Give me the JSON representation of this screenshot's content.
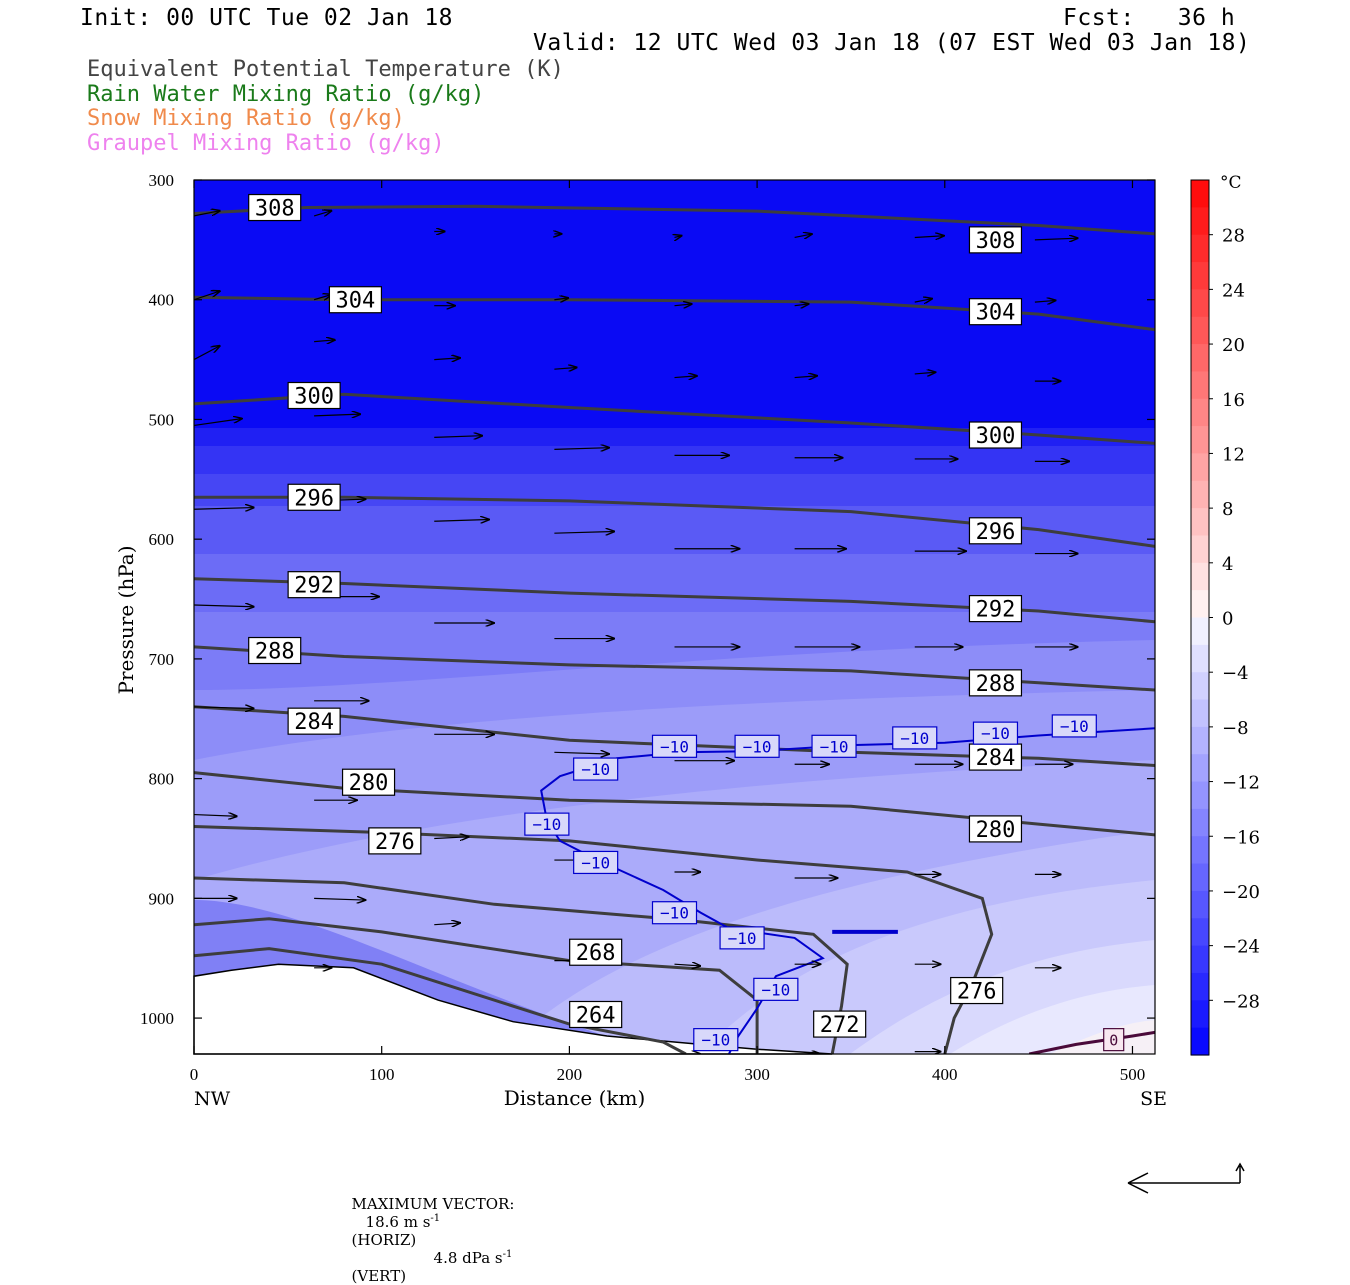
{
  "header": {
    "init": "Init: 00 UTC Tue 02 Jan 18",
    "fcst": "Fcst:   36 h",
    "valid": "Valid: 12 UTC Wed 03 Jan 18 (07 EST Wed 03 Jan 18)"
  },
  "legend": [
    {
      "label": "Equivalent Potential Temperature (K)",
      "color": "#444444"
    },
    {
      "label": "Rain Water Mixing Ratio (g/kg)",
      "color": "#1a7a1a"
    },
    {
      "label": "Snow Mixing Ratio (g/kg)",
      "color": "#f08a4b"
    },
    {
      "label": "Graupel Mixing Ratio (g/kg)",
      "color": "#ee82ee"
    }
  ],
  "footer": {
    "max_label": "MAXIMUM VECTOR:",
    "horiz": "18.6 m s",
    "horiz_sup": "-1",
    "horiz_tag": "(HORIZ)",
    "vert": "4.8 dPa s",
    "vert_sup": "-1",
    "vert_tag": "(VERT)"
  },
  "chart_data": {
    "type": "cross-section",
    "xlabel": "Distance (km)",
    "ylabel": "Pressure (hPa)",
    "xlim": [
      0,
      512
    ],
    "ylim": [
      1030,
      300
    ],
    "x_ticks": [
      0,
      100,
      200,
      300,
      400,
      500
    ],
    "y_ticks": [
      300,
      400,
      500,
      600,
      700,
      800,
      900,
      1000
    ],
    "x_end_labels": {
      "left": "NW",
      "right": "SE"
    },
    "colorbar": {
      "unit": "°C",
      "range": [
        -32,
        32
      ],
      "tick_values": [
        28,
        24,
        20,
        16,
        12,
        8,
        4,
        0,
        -4,
        -8,
        -12,
        -16,
        -20,
        -24,
        -28
      ]
    },
    "terrain": [
      [
        0,
        965
      ],
      [
        20,
        960
      ],
      [
        45,
        955
      ],
      [
        85,
        958
      ],
      [
        130,
        985
      ],
      [
        170,
        1003
      ],
      [
        220,
        1015
      ],
      [
        270,
        1022
      ],
      [
        300,
        1026
      ],
      [
        340,
        1030
      ]
    ],
    "theta_e_contours": [
      {
        "value": 308,
        "points": [
          [
            0,
            328
          ],
          [
            60,
            323
          ],
          [
            150,
            322
          ],
          [
            300,
            326
          ],
          [
            450,
            338
          ],
          [
            512,
            345
          ]
        ]
      },
      {
        "value": 304,
        "points": [
          [
            0,
            398
          ],
          [
            80,
            400
          ],
          [
            200,
            400
          ],
          [
            350,
            402
          ],
          [
            450,
            412
          ],
          [
            512,
            425
          ]
        ]
      },
      {
        "value": 300,
        "points": [
          [
            0,
            487
          ],
          [
            80,
            479
          ],
          [
            200,
            490
          ],
          [
            350,
            503
          ],
          [
            450,
            513
          ],
          [
            512,
            520
          ]
        ]
      },
      {
        "value": 296,
        "points": [
          [
            0,
            565
          ],
          [
            80,
            565
          ],
          [
            200,
            568
          ],
          [
            350,
            577
          ],
          [
            450,
            592
          ],
          [
            512,
            606
          ]
        ]
      },
      {
        "value": 292,
        "points": [
          [
            0,
            633
          ],
          [
            80,
            637
          ],
          [
            200,
            645
          ],
          [
            350,
            652
          ],
          [
            450,
            660
          ],
          [
            512,
            669
          ]
        ]
      },
      {
        "value": 288,
        "points": [
          [
            0,
            690
          ],
          [
            80,
            698
          ],
          [
            200,
            705
          ],
          [
            350,
            710
          ],
          [
            450,
            720
          ],
          [
            512,
            726
          ]
        ]
      },
      {
        "value": 284,
        "points": [
          [
            0,
            740
          ],
          [
            80,
            748
          ],
          [
            200,
            768
          ],
          [
            350,
            778
          ],
          [
            450,
            783
          ],
          [
            512,
            789
          ]
        ]
      },
      {
        "value": 280,
        "points": [
          [
            0,
            795
          ],
          [
            80,
            808
          ],
          [
            200,
            818
          ],
          [
            350,
            823
          ],
          [
            450,
            838
          ],
          [
            512,
            847
          ]
        ]
      },
      {
        "value": 276,
        "points": [
          [
            0,
            840
          ],
          [
            100,
            845
          ],
          [
            200,
            852
          ],
          [
            300,
            868
          ],
          [
            380,
            878
          ],
          [
            420,
            900
          ],
          [
            425,
            930
          ],
          [
            415,
            970
          ],
          [
            405,
            1000
          ],
          [
            400,
            1030
          ]
        ]
      },
      {
        "value": 272,
        "points": [
          [
            0,
            883
          ],
          [
            80,
            887
          ],
          [
            160,
            905
          ],
          [
            260,
            918
          ],
          [
            330,
            930
          ],
          [
            348,
            955
          ],
          [
            345,
            990
          ],
          [
            340,
            1030
          ]
        ]
      },
      {
        "value": 268,
        "points": [
          [
            0,
            922
          ],
          [
            40,
            917
          ],
          [
            100,
            928
          ],
          [
            200,
            952
          ],
          [
            280,
            960
          ],
          [
            300,
            985
          ],
          [
            300,
            1030
          ]
        ]
      },
      {
        "value": 264,
        "points": [
          [
            0,
            948
          ],
          [
            40,
            942
          ],
          [
            100,
            955
          ],
          [
            200,
            1005
          ],
          [
            250,
            1020
          ],
          [
            262,
            1030
          ]
        ]
      }
    ],
    "theta_e_labels": [
      {
        "value": "308",
        "x": 43,
        "p": 323
      },
      {
        "value": "308",
        "x": 427,
        "p": 350
      },
      {
        "value": "304",
        "x": 86,
        "p": 400
      },
      {
        "value": "304",
        "x": 427,
        "p": 410
      },
      {
        "value": "300",
        "x": 64,
        "p": 480
      },
      {
        "value": "300",
        "x": 427,
        "p": 513
      },
      {
        "value": "296",
        "x": 64,
        "p": 565
      },
      {
        "value": "296",
        "x": 427,
        "p": 593
      },
      {
        "value": "292",
        "x": 64,
        "p": 638
      },
      {
        "value": "292",
        "x": 427,
        "p": 658
      },
      {
        "value": "288",
        "x": 43,
        "p": 693
      },
      {
        "value": "288",
        "x": 427,
        "p": 720
      },
      {
        "value": "284",
        "x": 64,
        "p": 752
      },
      {
        "value": "284",
        "x": 427,
        "p": 782
      },
      {
        "value": "280",
        "x": 93,
        "p": 803
      },
      {
        "value": "280",
        "x": 427,
        "p": 842
      },
      {
        "value": "276",
        "x": 107,
        "p": 852
      },
      {
        "value": "276",
        "x": 417,
        "p": 977
      },
      {
        "value": "272",
        "x": 344,
        "p": 1005
      },
      {
        "value": "268",
        "x": 214,
        "p": 945
      },
      {
        "value": "264",
        "x": 214,
        "p": 997
      }
    ],
    "temp_contours": [
      {
        "value": -10,
        "points": [
          [
            225,
            783
          ],
          [
            215,
            788
          ],
          [
            195,
            798
          ],
          [
            185,
            810
          ],
          [
            188,
            835
          ],
          [
            195,
            852
          ],
          [
            215,
            868
          ],
          [
            250,
            893
          ],
          [
            270,
            912
          ],
          [
            285,
            925
          ],
          [
            320,
            933
          ],
          [
            335,
            950
          ],
          [
            310,
            965
          ],
          [
            300,
            992
          ],
          [
            290,
            1015
          ],
          [
            285,
            1030
          ]
        ]
      },
      {
        "value": -10,
        "points": [
          [
            225,
            783
          ],
          [
            260,
            778
          ],
          [
            300,
            777
          ],
          [
            350,
            772
          ],
          [
            400,
            770
          ],
          [
            450,
            764
          ],
          [
            512,
            758
          ]
        ]
      },
      {
        "value": -10,
        "points": [
          [
            340,
            928
          ],
          [
            375,
            928
          ]
        ]
      }
    ],
    "temp_labels": [
      {
        "value": "-10",
        "x": 214,
        "p": 792
      },
      {
        "value": "-10",
        "x": 256,
        "p": 773
      },
      {
        "value": "-10",
        "x": 300,
        "p": 773
      },
      {
        "value": "-10",
        "x": 341,
        "p": 773
      },
      {
        "value": "-10",
        "x": 384,
        "p": 766
      },
      {
        "value": "-10",
        "x": 427,
        "p": 762
      },
      {
        "value": "-10",
        "x": 469,
        "p": 756
      },
      {
        "value": "-10",
        "x": 188,
        "p": 838
      },
      {
        "value": "-10",
        "x": 214,
        "p": 870
      },
      {
        "value": "-10",
        "x": 256,
        "p": 912
      },
      {
        "value": "-10",
        "x": 292,
        "p": 933
      },
      {
        "value": "-10",
        "x": 310,
        "p": 976
      },
      {
        "value": "-10",
        "x": 278,
        "p": 1018
      }
    ],
    "zero_contour": {
      "value": 0,
      "points": [
        [
          445,
          1030
        ],
        [
          470,
          1022
        ],
        [
          500,
          1015
        ],
        [
          512,
          1012
        ]
      ]
    },
    "zero_label": {
      "value": "0",
      "x": 490,
      "p": 1018
    },
    "wind_vectors": [
      {
        "x": 0,
        "p": 330,
        "u": 15,
        "w": -3
      },
      {
        "x": 64,
        "p": 330,
        "u": 10,
        "w": -3
      },
      {
        "x": 128,
        "p": 343,
        "u": 6,
        "w": 0
      },
      {
        "x": 192,
        "p": 345,
        "u": 4,
        "w": 0
      },
      {
        "x": 256,
        "p": 348,
        "u": 4,
        "w": -1
      },
      {
        "x": 320,
        "p": 348,
        "u": 10,
        "w": -2
      },
      {
        "x": 384,
        "p": 348,
        "u": 17,
        "w": -1
      },
      {
        "x": 448,
        "p": 350,
        "u": 25,
        "w": -1
      },
      {
        "x": 0,
        "p": 400,
        "u": 15,
        "w": -5
      },
      {
        "x": 64,
        "p": 400,
        "u": 10,
        "w": -3
      },
      {
        "x": 128,
        "p": 405,
        "u": 12,
        "w": 0
      },
      {
        "x": 192,
        "p": 400,
        "u": 8,
        "w": -1
      },
      {
        "x": 256,
        "p": 405,
        "u": 10,
        "w": -1
      },
      {
        "x": 320,
        "p": 405,
        "u": 8,
        "w": -1
      },
      {
        "x": 384,
        "p": 402,
        "u": 10,
        "w": -2
      },
      {
        "x": 448,
        "p": 402,
        "u": 12,
        "w": -1
      },
      {
        "x": 0,
        "p": 450,
        "u": 15,
        "w": -8
      },
      {
        "x": 64,
        "p": 435,
        "u": 12,
        "w": -1
      },
      {
        "x": 128,
        "p": 450,
        "u": 15,
        "w": -1
      },
      {
        "x": 192,
        "p": 458,
        "u": 13,
        "w": -1
      },
      {
        "x": 256,
        "p": 465,
        "u": 13,
        "w": -1
      },
      {
        "x": 320,
        "p": 465,
        "u": 13,
        "w": -1
      },
      {
        "x": 384,
        "p": 462,
        "u": 12,
        "w": -1
      },
      {
        "x": 448,
        "p": 468,
        "u": 15,
        "w": 0
      },
      {
        "x": 0,
        "p": 505,
        "u": 28,
        "w": -4
      },
      {
        "x": 64,
        "p": 497,
        "u": 27,
        "w": -1
      },
      {
        "x": 128,
        "p": 515,
        "u": 28,
        "w": -1
      },
      {
        "x": 192,
        "p": 525,
        "u": 32,
        "w": -1
      },
      {
        "x": 256,
        "p": 530,
        "u": 32,
        "w": 0
      },
      {
        "x": 320,
        "p": 532,
        "u": 28,
        "w": 0
      },
      {
        "x": 384,
        "p": 533,
        "u": 25,
        "w": 0
      },
      {
        "x": 448,
        "p": 535,
        "u": 20,
        "w": 0
      },
      {
        "x": 0,
        "p": 575,
        "u": 35,
        "w": -1
      },
      {
        "x": 64,
        "p": 568,
        "u": 30,
        "w": -1
      },
      {
        "x": 128,
        "p": 585,
        "u": 32,
        "w": -1
      },
      {
        "x": 192,
        "p": 595,
        "u": 35,
        "w": -1
      },
      {
        "x": 256,
        "p": 608,
        "u": 38,
        "w": 0
      },
      {
        "x": 320,
        "p": 608,
        "u": 30,
        "w": 0
      },
      {
        "x": 384,
        "p": 610,
        "u": 30,
        "w": 0
      },
      {
        "x": 448,
        "p": 612,
        "u": 25,
        "w": 0
      },
      {
        "x": 0,
        "p": 655,
        "u": 35,
        "w": 1
      },
      {
        "x": 64,
        "p": 648,
        "u": 38,
        "w": 0
      },
      {
        "x": 128,
        "p": 670,
        "u": 35,
        "w": 0
      },
      {
        "x": 192,
        "p": 683,
        "u": 35,
        "w": 0
      },
      {
        "x": 256,
        "p": 690,
        "u": 38,
        "w": 0
      },
      {
        "x": 320,
        "p": 690,
        "u": 38,
        "w": 0
      },
      {
        "x": 384,
        "p": 690,
        "u": 28,
        "w": 0
      },
      {
        "x": 448,
        "p": 690,
        "u": 25,
        "w": 0
      },
      {
        "x": 0,
        "p": 740,
        "u": 35,
        "w": 1
      },
      {
        "x": 64,
        "p": 735,
        "u": 32,
        "w": 0
      },
      {
        "x": 128,
        "p": 763,
        "u": 35,
        "w": 0
      },
      {
        "x": 192,
        "p": 778,
        "u": 32,
        "w": 1
      },
      {
        "x": 256,
        "p": 785,
        "u": 35,
        "w": 0
      },
      {
        "x": 320,
        "p": 788,
        "u": 20,
        "w": 0
      },
      {
        "x": 384,
        "p": 788,
        "u": 28,
        "w": 0
      },
      {
        "x": 448,
        "p": 788,
        "u": 22,
        "w": 0
      },
      {
        "x": 0,
        "p": 830,
        "u": 25,
        "w": 1
      },
      {
        "x": 64,
        "p": 818,
        "u": 25,
        "w": 0
      },
      {
        "x": 128,
        "p": 850,
        "u": 20,
        "w": -1
      },
      {
        "x": 192,
        "p": 868,
        "u": 18,
        "w": 0
      },
      {
        "x": 256,
        "p": 878,
        "u": 15,
        "w": 0
      },
      {
        "x": 320,
        "p": 883,
        "u": 25,
        "w": 0
      },
      {
        "x": 384,
        "p": 880,
        "u": 15,
        "w": 0
      },
      {
        "x": 448,
        "p": 880,
        "u": 15,
        "w": 0
      },
      {
        "x": 0,
        "p": 900,
        "u": 25,
        "w": 0
      },
      {
        "x": 64,
        "p": 900,
        "u": 30,
        "w": 1
      },
      {
        "x": 128,
        "p": 922,
        "u": 15,
        "w": -1
      },
      {
        "x": 192,
        "p": 952,
        "u": 20,
        "w": 0
      },
      {
        "x": 256,
        "p": 955,
        "u": 15,
        "w": 1
      },
      {
        "x": 320,
        "p": 955,
        "u": 15,
        "w": 0
      },
      {
        "x": 384,
        "p": 955,
        "u": 15,
        "w": 0
      },
      {
        "x": 448,
        "p": 958,
        "u": 15,
        "w": 0
      },
      {
        "x": 64,
        "p": 958,
        "u": 10,
        "w": 0
      },
      {
        "x": 256,
        "p": 1030,
        "u": 15,
        "w": 0
      },
      {
        "x": 320,
        "p": 1030,
        "u": 15,
        "w": 0
      },
      {
        "x": 384,
        "p": 1028,
        "u": 15,
        "w": 0
      }
    ]
  }
}
